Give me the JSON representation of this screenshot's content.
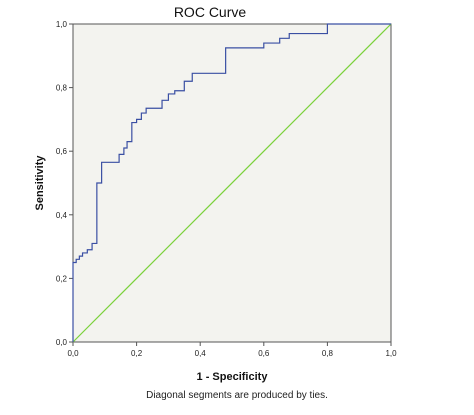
{
  "chart_data": {
    "type": "line",
    "title": "ROC Curve",
    "xlabel": "1 - Specificity",
    "ylabel": "Sensitivity",
    "xlim": [
      0.0,
      1.0
    ],
    "ylim": [
      0.0,
      1.0
    ],
    "x_ticks": [
      "0,0",
      "0,2",
      "0,4",
      "0,6",
      "0,8",
      "1,0"
    ],
    "y_ticks": [
      "0,0",
      "0,2",
      "0,4",
      "0,6",
      "0,8",
      "1,0"
    ],
    "tick_values": [
      0.0,
      0.2,
      0.4,
      0.6,
      0.8,
      1.0
    ],
    "grid": false,
    "plot_background": "#f3f3ef",
    "series": [
      {
        "color": "#3a4fa3",
        "x": [
          0.0,
          0.0,
          0.01,
          0.01,
          0.02,
          0.02,
          0.03,
          0.03,
          0.045,
          0.045,
          0.06,
          0.06,
          0.075,
          0.075,
          0.09,
          0.09,
          0.145,
          0.145,
          0.16,
          0.16,
          0.17,
          0.17,
          0.185,
          0.185,
          0.2,
          0.2,
          0.215,
          0.215,
          0.23,
          0.23,
          0.28,
          0.28,
          0.3,
          0.3,
          0.32,
          0.32,
          0.35,
          0.35,
          0.375,
          0.375,
          0.48,
          0.48,
          0.6,
          0.6,
          0.65,
          0.65,
          0.68,
          0.68,
          0.8,
          0.8,
          1.0
        ],
        "y": [
          0.0,
          0.25,
          0.25,
          0.26,
          0.26,
          0.27,
          0.27,
          0.28,
          0.28,
          0.29,
          0.29,
          0.31,
          0.31,
          0.5,
          0.5,
          0.565,
          0.565,
          0.59,
          0.59,
          0.61,
          0.61,
          0.63,
          0.63,
          0.69,
          0.69,
          0.7,
          0.7,
          0.72,
          0.72,
          0.735,
          0.735,
          0.76,
          0.76,
          0.78,
          0.78,
          0.79,
          0.79,
          0.82,
          0.82,
          0.845,
          0.845,
          0.925,
          0.925,
          0.94,
          0.94,
          0.955,
          0.955,
          0.97,
          0.97,
          1.0,
          1.0
        ]
      },
      {
        "color": "#7ad13a",
        "x": [
          0.0,
          1.0
        ],
        "y": [
          0.0,
          1.0
        ]
      }
    ]
  },
  "footnote": "Diagonal segments are produced by ties."
}
